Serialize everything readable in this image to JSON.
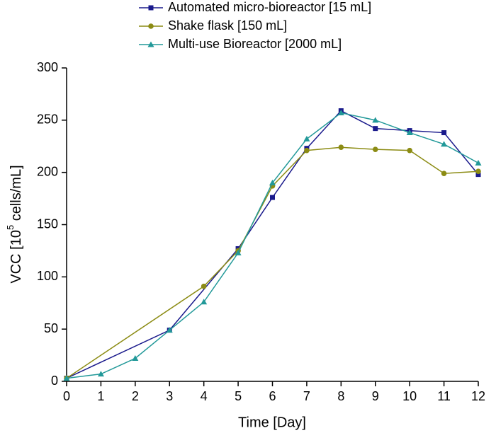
{
  "chart_data": {
    "type": "line",
    "x_label": "Time [Day]",
    "y_label": {
      "prefix": "VCC [10",
      "sup": "5",
      "suffix": " cells/mL]"
    },
    "xlim": [
      0,
      12
    ],
    "xticks": [
      0,
      1,
      2,
      3,
      4,
      5,
      6,
      7,
      8,
      9,
      10,
      11,
      12
    ],
    "ylim": [
      0,
      300
    ],
    "yticks": [
      0,
      50,
      100,
      150,
      200,
      250,
      300
    ],
    "series": [
      {
        "name": "Automated micro-bioreactor [15 mL]",
        "color": "#1a1a8c",
        "marker": "square",
        "x": [
          0,
          3,
          5,
          6,
          7,
          8,
          9,
          10,
          11,
          12
        ],
        "values": [
          3,
          49,
          127,
          176,
          223,
          259,
          242,
          240,
          238,
          198
        ]
      },
      {
        "name": "Shake flask [150 mL]",
        "color": "#8c8c14",
        "marker": "circle",
        "x": [
          0,
          4,
          5,
          6,
          7,
          8,
          9,
          10,
          11,
          12
        ],
        "values": [
          3,
          91,
          125,
          187,
          221,
          224,
          222,
          221,
          199,
          201
        ]
      },
      {
        "name": "Multi-use Bioreactor [2000 mL]",
        "color": "#229999",
        "marker": "triangle",
        "x": [
          0,
          1,
          2,
          3,
          4,
          5,
          6,
          7,
          8,
          9,
          10,
          11,
          12
        ],
        "values": [
          3,
          7,
          22,
          49,
          76,
          123,
          190,
          232,
          257,
          250,
          238,
          227,
          209
        ]
      }
    ]
  }
}
